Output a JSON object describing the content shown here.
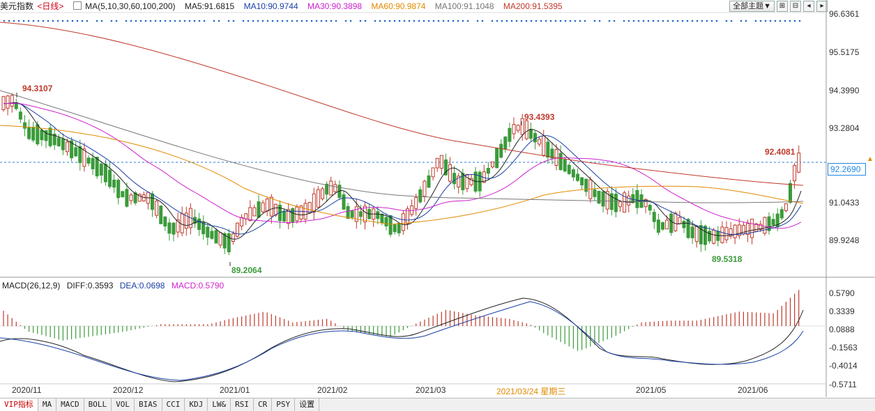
{
  "header": {
    "title": "美元指数",
    "period": "<日线>",
    "ma_label": "MA(5,10,30,60,100,200)",
    "ma": [
      {
        "name": "MA5",
        "text": "MA5:91.6815",
        "color": "#222222"
      },
      {
        "name": "MA10",
        "text": "MA10:90.9744",
        "color": "#1a3fa6"
      },
      {
        "name": "MA30",
        "text": "MA30:90.3898",
        "color": "#cc22cc"
      },
      {
        "name": "MA60",
        "text": "MA60:90.9874",
        "color": "#e08a00"
      },
      {
        "name": "MA100",
        "text": "MA100:91.1048",
        "color": "#777777"
      },
      {
        "name": "MA200",
        "text": "MA200:91.5395",
        "color": "#c0392b"
      }
    ],
    "theme_button": "全部主题▼",
    "tool_icons": [
      "zoom-in-icon",
      "zoom-out-icon",
      "pan-left-icon",
      "pan-right-icon"
    ],
    "tool_glyphs": [
      "⊞",
      "⊟",
      "◂",
      "▸"
    ]
  },
  "price_axis": {
    "labels": [
      "96.6361",
      "95.5175",
      "94.3990",
      "93.2804",
      "92.2690",
      "91.0433",
      "89.9248"
    ],
    "current": "92.2690"
  },
  "annotations": {
    "high1": "94.3107",
    "low1": "89.2064",
    "high2": "93.4393",
    "low2": "89.5318",
    "high3": "92.4081"
  },
  "macd": {
    "label": "MACD(26,12,9)",
    "diff": "DIFF:0.3593",
    "dea": "DEA:0.0698",
    "macd": "MACD:0.5790",
    "axis": [
      "0.5790",
      "0.3339",
      "0.0888",
      "-0.1563",
      "-0.4014",
      "-0.5711"
    ]
  },
  "dates": [
    "2020/11",
    "2020/12",
    "2021/01",
    "2021/02",
    "2021/03",
    "2021/03/24 星期三",
    "2021/05",
    "2021/06"
  ],
  "tabs": [
    "VIP指标",
    "MA",
    "MACD",
    "BOLL",
    "VOL",
    "BIAS",
    "CCI",
    "KDJ",
    "LW&",
    "RSI",
    "CR",
    "PSY",
    "设置"
  ],
  "colors": {
    "up": "#c0392b",
    "down": "#3a9b3a",
    "cursor_line": "#2a7bd4"
  },
  "chart_data": {
    "type": "candlestick",
    "title": "美元指数",
    "ylim": [
      88.9,
      96.7
    ],
    "series": [
      {
        "name": "MA5",
        "value": 91.6815
      },
      {
        "name": "MA10",
        "value": 90.9744
      },
      {
        "name": "MA30",
        "value": 90.3898
      },
      {
        "name": "MA60",
        "value": 90.9874
      },
      {
        "name": "MA100",
        "value": 91.1048
      },
      {
        "name": "MA200",
        "value": 91.5395
      }
    ],
    "macd": {
      "diff": 0.3593,
      "dea": 0.0698,
      "macd": 0.579,
      "ylim": [
        -0.5711,
        0.579
      ]
    }
  }
}
